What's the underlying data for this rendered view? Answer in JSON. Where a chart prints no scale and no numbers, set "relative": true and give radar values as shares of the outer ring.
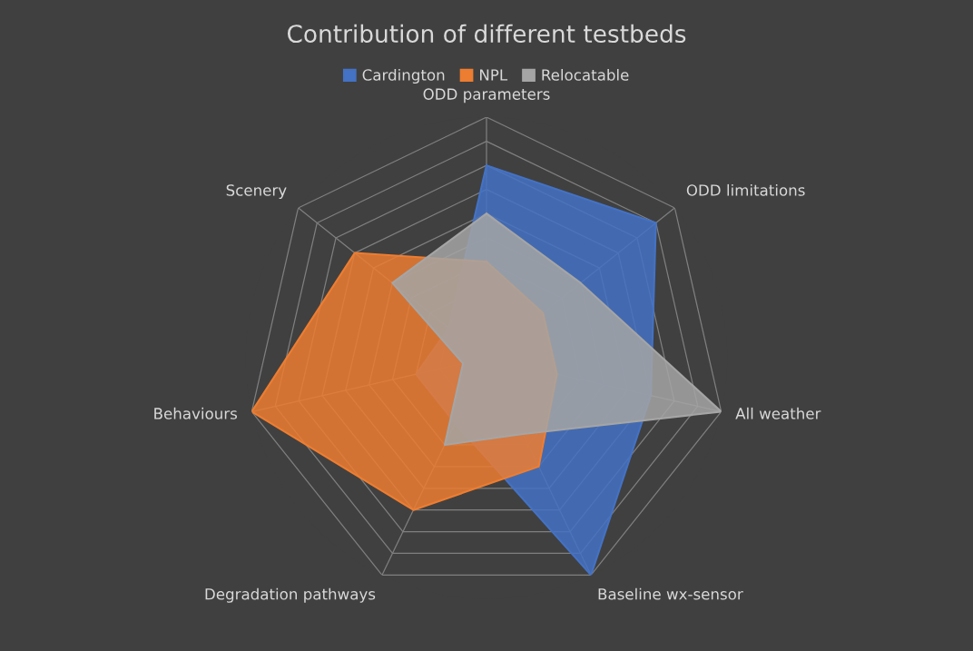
{
  "chart_data": {
    "type": "radar",
    "title": "Contribution of different testbeds",
    "relative": true,
    "legend": "top",
    "grid": true,
    "categories": [
      "ODD parameters",
      "ODD limitations",
      "All weather",
      "Baseline wx-sensor",
      "Degradation pathways",
      "Behaviours",
      "Scenery"
    ],
    "series": [
      {
        "name": "Cardington",
        "color": "#4472c4",
        "values": [
          0.8,
          0.9,
          0.7,
          1.0,
          0.3,
          0.3,
          0.2
        ]
      },
      {
        "name": "NPL",
        "color": "#ed7d31",
        "values": [
          0.4,
          0.3,
          0.3,
          0.5,
          0.7,
          1.0,
          0.7
        ]
      },
      {
        "name": "Relocatable",
        "color": "#a5a5a5",
        "values": [
          0.6,
          0.5,
          1.0,
          0.35,
          0.4,
          0.1,
          0.5
        ]
      }
    ]
  }
}
